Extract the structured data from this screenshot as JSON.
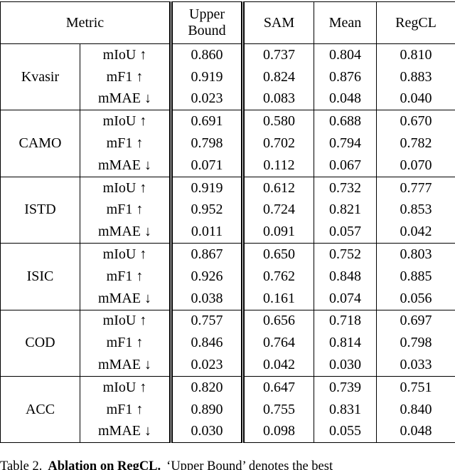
{
  "table": {
    "header": {
      "metric_label": "Metric",
      "method_columns": [
        "Upper Bound",
        "SAM",
        "Mean",
        "RegCL"
      ]
    },
    "groups": [
      {
        "dataset": "Kvasir",
        "rows": [
          {
            "metric": "mIoU ↑",
            "values": [
              "0.860",
              "0.737",
              "0.804",
              "0.810"
            ],
            "bold_col": 3
          },
          {
            "metric": "mF1 ↑",
            "values": [
              "0.919",
              "0.824",
              "0.876",
              "0.883"
            ],
            "bold_col": 3
          },
          {
            "metric": "mMAE ↓",
            "values": [
              "0.023",
              "0.083",
              "0.048",
              "0.040"
            ],
            "bold_col": 3
          }
        ]
      },
      {
        "dataset": "CAMO",
        "rows": [
          {
            "metric": "mIoU ↑",
            "values": [
              "0.691",
              "0.580",
              "0.688",
              "0.670"
            ],
            "bold_col": 2
          },
          {
            "metric": "mF1 ↑",
            "values": [
              "0.798",
              "0.702",
              "0.794",
              "0.782"
            ],
            "bold_col": 2
          },
          {
            "metric": "mMAE ↓",
            "values": [
              "0.071",
              "0.112",
              "0.067",
              "0.070"
            ],
            "bold_col": 2
          }
        ]
      },
      {
        "dataset": "ISTD",
        "rows": [
          {
            "metric": "mIoU ↑",
            "values": [
              "0.919",
              "0.612",
              "0.732",
              "0.777"
            ],
            "bold_col": 3
          },
          {
            "metric": "mF1 ↑",
            "values": [
              "0.952",
              "0.724",
              "0.821",
              "0.853"
            ],
            "bold_col": 3
          },
          {
            "metric": "mMAE ↓",
            "values": [
              "0.011",
              "0.091",
              "0.057",
              "0.042"
            ],
            "bold_col": 3
          }
        ]
      },
      {
        "dataset": "ISIC",
        "rows": [
          {
            "metric": "mIoU ↑",
            "values": [
              "0.867",
              "0.650",
              "0.752",
              "0.803"
            ],
            "bold_col": 3
          },
          {
            "metric": "mF1 ↑",
            "values": [
              "0.926",
              "0.762",
              "0.848",
              "0.885"
            ],
            "bold_col": 3
          },
          {
            "metric": "mMAE ↓",
            "values": [
              "0.038",
              "0.161",
              "0.074",
              "0.056"
            ],
            "bold_col": 3
          }
        ]
      },
      {
        "dataset": "COD",
        "rows": [
          {
            "metric": "mIoU ↑",
            "values": [
              "0.757",
              "0.656",
              "0.718",
              "0.697"
            ],
            "bold_col": 2
          },
          {
            "metric": "mF1 ↑",
            "values": [
              "0.846",
              "0.764",
              "0.814",
              "0.798"
            ],
            "bold_col": 2
          },
          {
            "metric": "mMAE ↓",
            "values": [
              "0.023",
              "0.042",
              "0.030",
              "0.033"
            ],
            "bold_col": 2
          }
        ]
      },
      {
        "dataset": "ACC",
        "rows": [
          {
            "metric": "mIoU ↑",
            "values": [
              "0.820",
              "0.647",
              "0.739",
              "0.751"
            ],
            "bold_col": 3
          },
          {
            "metric": "mF1 ↑",
            "values": [
              "0.890",
              "0.755",
              "0.831",
              "0.840"
            ],
            "bold_col": 3
          },
          {
            "metric": "mMAE ↓",
            "values": [
              "0.030",
              "0.098",
              "0.055",
              "0.048"
            ],
            "bold_col": 3
          }
        ]
      }
    ]
  },
  "caption": {
    "prefix": "Table 2.",
    "bold_part": "Ablation on RegCL.",
    "rest": "‘Upper Bound’ denotes the best"
  },
  "colors": {
    "text": "#000000",
    "background": "#ffffff",
    "rule": "#000000"
  }
}
